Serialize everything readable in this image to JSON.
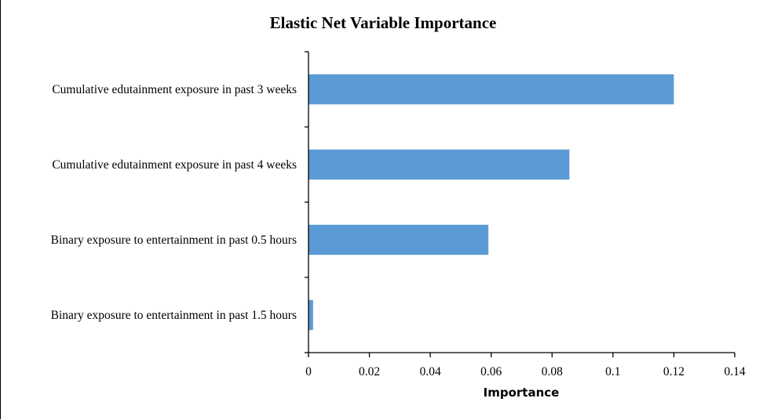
{
  "chart_data": {
    "type": "bar",
    "orientation": "horizontal",
    "title": "Elastic Net Variable Importance",
    "xlabel": "Importance",
    "ylabel": "",
    "categories": [
      "Cumulative edutainment exposure in past 3 weeks",
      "Cumulative edutainment exposure in past 4 weeks",
      "Binary exposure to entertainment in past 0.5 hours",
      "Binary exposure to entertainment in past 1.5 hours"
    ],
    "values": [
      0.12,
      0.0857,
      0.0591,
      0.0015
    ],
    "xlim": [
      0,
      0.14
    ],
    "xticks": [
      "0",
      "0.02",
      "0.04",
      "0.06",
      "0.08",
      "0.1",
      "0.12",
      "0.14"
    ],
    "grid": false,
    "bar_color": "#5b9bd5"
  }
}
